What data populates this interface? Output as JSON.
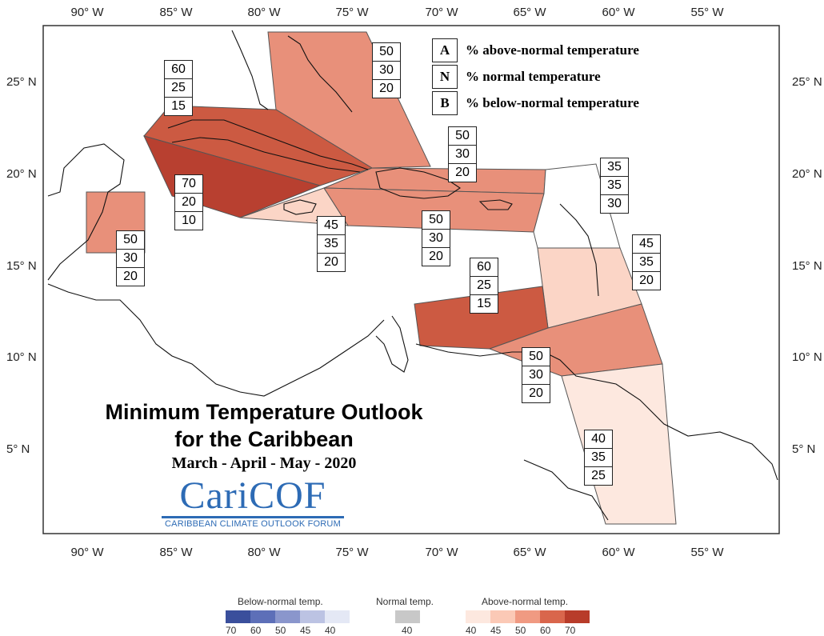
{
  "map": {
    "title_line1": "Minimum Temperature Outlook",
    "title_line2": "for the Caribbean",
    "subtitle": "March - April - May - 2020",
    "logo_text": "CariCOF",
    "logo_subtext": "CARIBBEAN CLIMATE OUTLOOK FORUM",
    "lon_labels": [
      "90° W",
      "85° W",
      "80° W",
      "75° W",
      "70° W",
      "65° W",
      "60° W",
      "55° W"
    ],
    "lat_labels": [
      "25° N",
      "20° N",
      "15° N",
      "10° N",
      "5° N"
    ],
    "key": [
      {
        "letter": "A",
        "text": "% above-normal temperature"
      },
      {
        "letter": "N",
        "text": "% normal temperature"
      },
      {
        "letter": "B",
        "text": "% below-normal temperature"
      }
    ],
    "regions": [
      {
        "id": "bahamas",
        "A": "50",
        "N": "30",
        "B": "20",
        "color": "#e8907a"
      },
      {
        "id": "cuba",
        "A": "60",
        "N": "25",
        "B": "15",
        "color": "#cc5a42"
      },
      {
        "id": "cayman",
        "A": "70",
        "N": "20",
        "B": "10",
        "color": "#b84030"
      },
      {
        "id": "hispaniola-pr",
        "A": "50",
        "N": "30",
        "B": "20",
        "color": "#e8907a"
      },
      {
        "id": "jamaica",
        "A": "45",
        "N": "35",
        "B": "20",
        "color": "#fbd5c6"
      },
      {
        "id": "belize",
        "A": "50",
        "N": "30",
        "B": "20",
        "color": "#e8907a"
      },
      {
        "id": "hispaniola-south",
        "A": "50",
        "N": "30",
        "B": "20",
        "color": "#e8907a"
      },
      {
        "id": "leeward",
        "A": "35",
        "N": "35",
        "B": "30",
        "color": "#ffffff"
      },
      {
        "id": "windward",
        "A": "45",
        "N": "35",
        "B": "20",
        "color": "#fbd5c6"
      },
      {
        "id": "abc-islands",
        "A": "60",
        "N": "25",
        "B": "15",
        "color": "#cc5a42"
      },
      {
        "id": "trinidad",
        "A": "50",
        "N": "30",
        "B": "20",
        "color": "#e8907a"
      },
      {
        "id": "guianas",
        "A": "40",
        "N": "35",
        "B": "25",
        "color": "#fde8df"
      }
    ]
  },
  "scale": {
    "below_title": "Below-normal temp.",
    "normal_title": "Normal temp.",
    "above_title": "Above-normal temp.",
    "below_ticks": [
      "70",
      "60",
      "50",
      "45",
      "40"
    ],
    "normal_ticks": [
      "40"
    ],
    "above_ticks": [
      "40",
      "45",
      "50",
      "60",
      "70"
    ],
    "below_colors": [
      "#3a4f9c",
      "#5d6fb8",
      "#8a96cc",
      "#bcc3e3",
      "#e4e8f5"
    ],
    "normal_color": "#c8c8c8",
    "above_colors": [
      "#fde8df",
      "#fbc9b6",
      "#f09a82",
      "#d9664c",
      "#b83c2a"
    ]
  }
}
